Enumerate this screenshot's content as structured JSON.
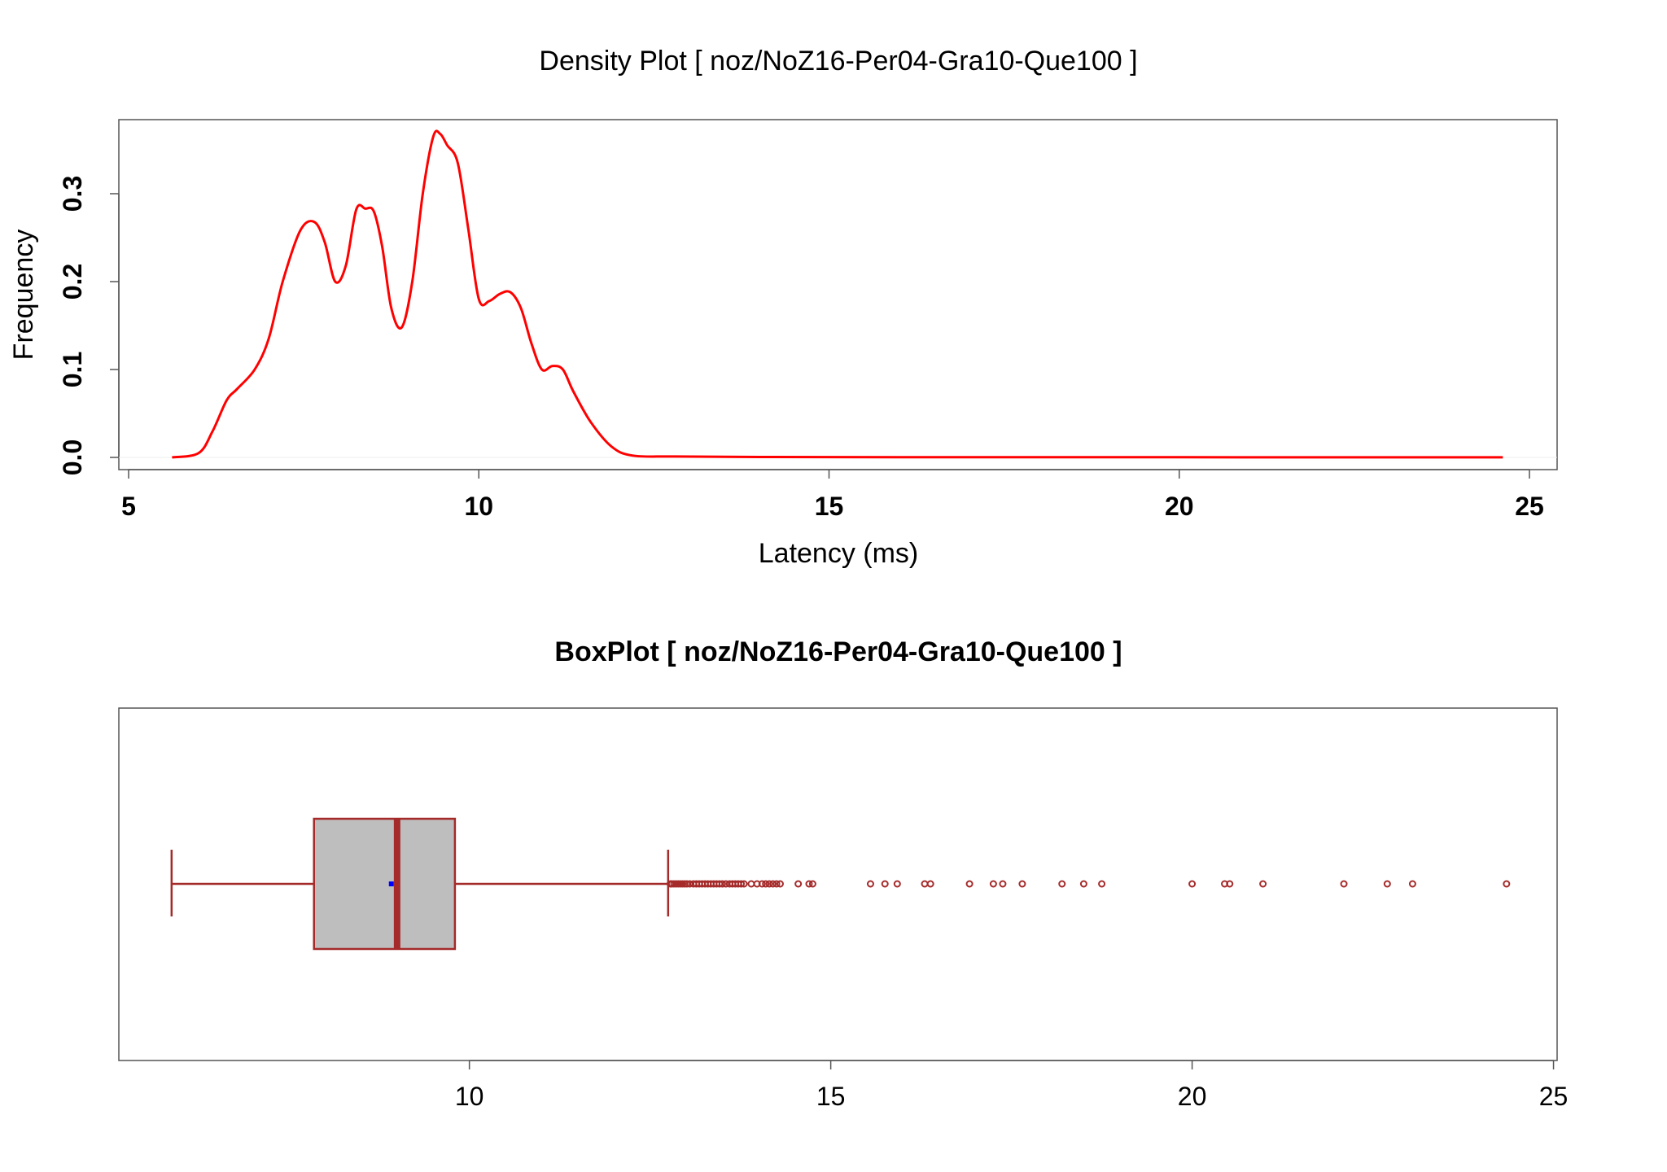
{
  "chart_data": [
    {
      "type": "line",
      "title": "Density Plot [ noz/NoZ16-Per04-Gra10-Que100 ]",
      "xlabel": "Latency (ms)",
      "ylabel": "Frequency",
      "xlim": [
        5,
        25
      ],
      "ylim": [
        0,
        0.37
      ],
      "x_ticks": [
        "5",
        "10",
        "15",
        "20",
        "25"
      ],
      "y_ticks": [
        "0.0",
        "0.1",
        "0.2",
        "0.3"
      ],
      "line_color": "#ff0000",
      "grid": false,
      "series": [
        {
          "x": [
            5.62,
            6.0,
            6.2,
            6.4,
            6.55,
            6.8,
            7.0,
            7.2,
            7.45,
            7.65,
            7.8,
            7.95,
            8.1,
            8.25,
            8.38,
            8.5,
            8.62,
            8.75,
            8.9,
            9.05,
            9.2,
            9.35,
            9.45,
            9.55,
            9.7,
            9.85,
            10.0,
            10.15,
            10.3,
            10.45,
            10.6,
            10.75,
            10.9,
            11.05,
            11.2,
            11.35,
            11.6,
            11.9,
            12.2,
            12.8,
            14.0,
            16.0,
            20.0,
            24.62
          ],
          "y": [
            0.0,
            0.005,
            0.03,
            0.065,
            0.078,
            0.1,
            0.135,
            0.2,
            0.258,
            0.268,
            0.245,
            0.2,
            0.218,
            0.282,
            0.283,
            0.28,
            0.24,
            0.17,
            0.148,
            0.2,
            0.3,
            0.365,
            0.368,
            0.355,
            0.335,
            0.26,
            0.18,
            0.178,
            0.186,
            0.188,
            0.17,
            0.13,
            0.1,
            0.104,
            0.1,
            0.075,
            0.04,
            0.012,
            0.002,
            0.001,
            0.0005,
            0.0003,
            0.0002,
            0.0001
          ]
        }
      ]
    },
    {
      "type": "boxplot",
      "title": "BoxPlot [ noz/NoZ16-Per04-Gra10-Que100 ]",
      "xlabel": "",
      "ylabel": "",
      "xlim": [
        5.15,
        25.05
      ],
      "x_ticks": [
        "10",
        "15",
        "20",
        "25"
      ],
      "box_fill": "#bebebe",
      "line_color": "#a52a2a",
      "mean_color": "#0000ff",
      "whisker_low": 5.88,
      "q1": 7.85,
      "median": 9.0,
      "q3": 9.8,
      "whisker_high": 12.75,
      "mean": 8.92,
      "outliers": [
        12.78,
        12.8,
        12.83,
        12.86,
        12.89,
        12.92,
        12.95,
        12.98,
        13.01,
        13.05,
        13.1,
        13.14,
        13.18,
        13.22,
        13.26,
        13.3,
        13.34,
        13.38,
        13.42,
        13.46,
        13.5,
        13.55,
        13.6,
        13.64,
        13.68,
        13.72,
        13.76,
        13.8,
        13.9,
        13.98,
        14.05,
        14.1,
        14.15,
        14.2,
        14.25,
        14.3,
        14.55,
        14.7,
        14.75,
        15.55,
        15.75,
        15.92,
        16.3,
        16.38,
        16.92,
        17.25,
        17.38,
        17.65,
        18.2,
        18.5,
        18.75,
        20.0,
        20.45,
        20.52,
        20.98,
        22.1,
        22.7,
        23.05,
        24.35
      ]
    }
  ]
}
